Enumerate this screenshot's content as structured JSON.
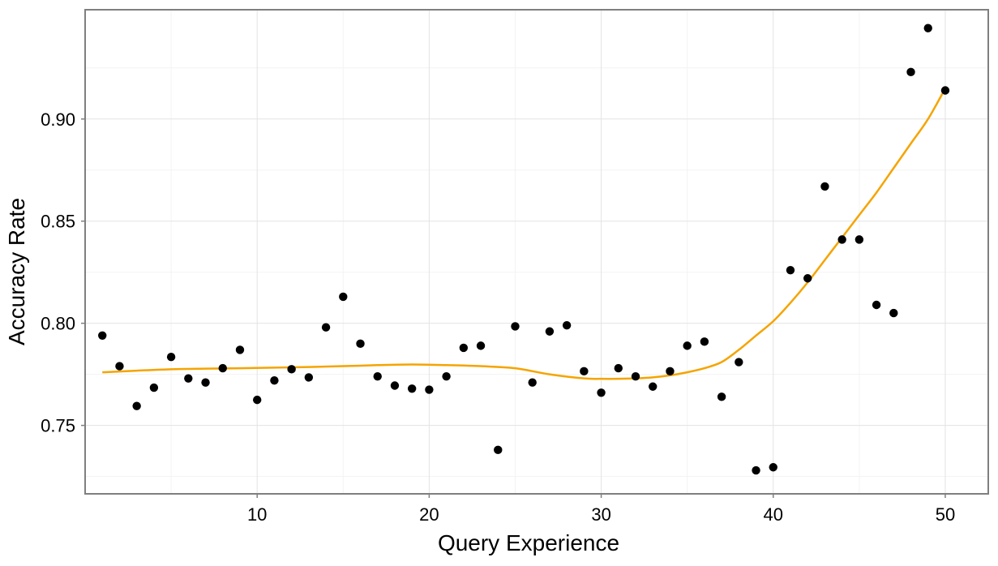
{
  "chart_data": {
    "type": "scatter",
    "xlabel": "Query Experience",
    "ylabel": "Accuracy Rate",
    "xlim": [
      0,
      52.5
    ],
    "ylim": [
      0.7165,
      0.9535
    ],
    "x_ticks": [
      10,
      20,
      30,
      40,
      50
    ],
    "y_ticks": [
      0.75,
      0.8,
      0.85,
      0.9
    ],
    "x_tick_labels": [
      "10",
      "20",
      "30",
      "40",
      "50"
    ],
    "y_tick_labels": [
      "0.75",
      "0.80",
      "0.85",
      "0.90"
    ],
    "grid": true,
    "points": {
      "x": [
        1,
        2,
        3,
        4,
        5,
        6,
        7,
        8,
        9,
        10,
        11,
        12,
        13,
        14,
        15,
        16,
        17,
        18,
        19,
        20,
        21,
        22,
        23,
        24,
        25,
        26,
        27,
        28,
        29,
        30,
        31,
        32,
        33,
        34,
        35,
        36,
        37,
        38,
        39,
        40,
        41,
        42,
        43,
        44,
        45,
        46,
        47,
        48,
        49,
        50
      ],
      "y": [
        0.794,
        0.779,
        0.7595,
        0.7685,
        0.7835,
        0.773,
        0.771,
        0.778,
        0.787,
        0.7625,
        0.772,
        0.7775,
        0.7735,
        0.798,
        0.813,
        0.79,
        0.774,
        0.7695,
        0.768,
        0.7675,
        0.774,
        0.788,
        0.789,
        0.738,
        0.7985,
        0.771,
        0.796,
        0.799,
        0.7765,
        0.766,
        0.778,
        0.774,
        0.769,
        0.7765,
        0.789,
        0.791,
        0.764,
        0.781,
        0.728,
        0.7295,
        0.826,
        0.822,
        0.867,
        0.841,
        0.841,
        0.809,
        0.805,
        0.923,
        0.9445,
        0.914
      ],
      "color": "#000000"
    },
    "trend_line": {
      "x": [
        1,
        3,
        5,
        7,
        9,
        11,
        13,
        15,
        17,
        19,
        21,
        23,
        25,
        27,
        29,
        30,
        31,
        32,
        33,
        34,
        35,
        36,
        37,
        38,
        39,
        40,
        41,
        42,
        43,
        44,
        45,
        46,
        47,
        48,
        49,
        50
      ],
      "y": [
        0.776,
        0.7768,
        0.7775,
        0.7778,
        0.778,
        0.7783,
        0.7786,
        0.779,
        0.7795,
        0.7798,
        0.7795,
        0.779,
        0.778,
        0.775,
        0.773,
        0.7728,
        0.7728,
        0.773,
        0.7735,
        0.7745,
        0.776,
        0.778,
        0.781,
        0.787,
        0.794,
        0.801,
        0.81,
        0.82,
        0.831,
        0.842,
        0.853,
        0.864,
        0.876,
        0.888,
        0.9,
        0.915
      ],
      "color": "#f5a400"
    }
  }
}
